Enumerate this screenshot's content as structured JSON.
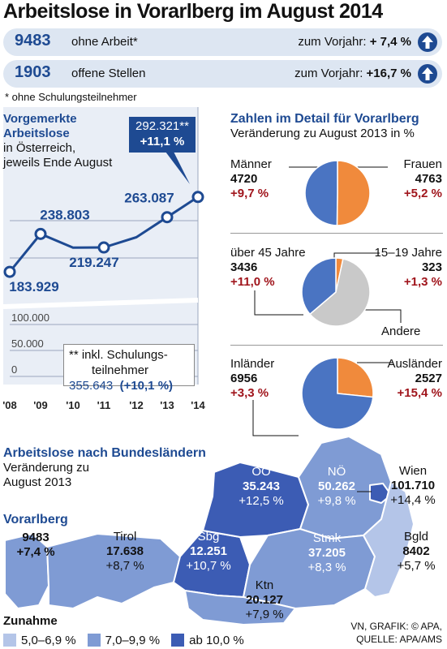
{
  "title": "Arbeitslose in Vorarlberg im August 2014",
  "kpis": [
    {
      "value": "9483",
      "label": "ohne Arbeit*",
      "change_label": "zum Vorjahr:",
      "change": "+ 7,4 %",
      "icon": "arrow-up-icon"
    },
    {
      "value": "1903",
      "label": "offene Stellen",
      "change_label": "zum Vorjahr:",
      "change": "+16,7 %",
      "icon": "arrow-up-icon"
    }
  ],
  "footnote": "* ohne Schulungsteilnehmer",
  "line_section": {
    "title_line1": "Vorgemerkte",
    "title_line2": "Arbeitslose",
    "sub_line1": "in Österreich,",
    "sub_line2": "jeweils Ende August",
    "callout_value": "292.321**",
    "callout_change": "+11,1 %",
    "note_line1": "** inkl. Schulungs-",
    "note_line2": "teilnehmer",
    "note_value": "355.643",
    "note_change": "(+10,1 %)"
  },
  "chart_data": [
    {
      "type": "line",
      "x": [
        "'08",
        "'09",
        "'10",
        "'11",
        "'12",
        "'13",
        "'14"
      ],
      "series": [
        {
          "values": [
            183929,
            238803,
            219000,
            219247,
            234000,
            263087,
            292321
          ]
        }
      ],
      "point_labels": [
        {
          "index": 0,
          "text": "183.929"
        },
        {
          "index": 1,
          "text": "238.803"
        },
        {
          "index": 3,
          "text": "219.247"
        },
        {
          "index": 5,
          "text": "263.087"
        }
      ],
      "y_ticks": [
        0,
        50000,
        100000
      ],
      "y_tick_labels": [
        "0",
        "50.000",
        "100.000"
      ],
      "ylim": [
        0,
        305000
      ],
      "y_axis_break": true,
      "grid": true,
      "color": "#1e4a92"
    },
    {
      "type": "pie",
      "title": "Zahlen im Detail für Vorarlberg",
      "subtitle": "Veränderung zu August 2013 in %",
      "charts": [
        {
          "slices": [
            {
              "name": "Männer",
              "value": 4720,
              "change": "+9,7 %",
              "color": "#4a74c2"
            },
            {
              "name": "Frauen",
              "value": 4763,
              "change": "+5,2 %",
              "color": "#f08a3c"
            }
          ]
        },
        {
          "slices": [
            {
              "name": "über 45 Jahre",
              "value": 3436,
              "change": "+11,0 %",
              "color": "#4a74c2"
            },
            {
              "name": "15–19 Jahre",
              "value": 323,
              "change": "+1,3 %",
              "color": "#f08a3c"
            },
            {
              "name": "Andere",
              "value": 5724,
              "change": "",
              "color": "#c9c9c9"
            }
          ]
        },
        {
          "slices": [
            {
              "name": "Inländer",
              "value": 6956,
              "change": "+3,3 %",
              "color": "#4a74c2"
            },
            {
              "name": "Ausländer",
              "value": 2527,
              "change": "+15,4 %",
              "color": "#f08a3c"
            }
          ]
        }
      ]
    }
  ],
  "map": {
    "title": "Arbeitslose nach Bundesländern",
    "sub_line1": "Veränderung zu",
    "sub_line2": "August 2013",
    "states": [
      {
        "name": "Vorarlberg",
        "value": "9483",
        "change": "+7,4 %",
        "color": "#7f9bd4"
      },
      {
        "name": "Tirol",
        "value": "17.638",
        "change": "+8,7 %",
        "color": "#7f9bd4"
      },
      {
        "name": "Sbg",
        "value": "12.251",
        "change": "+10,7 %",
        "color": "#3c5cb4"
      },
      {
        "name": "OÖ",
        "value": "35.243",
        "change": "+12,5 %",
        "color": "#3c5cb4"
      },
      {
        "name": "NÖ",
        "value": "50.262",
        "change": "+9,8 %",
        "color": "#7f9bd4"
      },
      {
        "name": "Wien",
        "value": "101.710",
        "change": "+14,4 %",
        "color": "#3c5cb4"
      },
      {
        "name": "Stmk",
        "value": "37.205",
        "change": "+8,3 %",
        "color": "#7f9bd4"
      },
      {
        "name": "Ktn",
        "value": "20.127",
        "change": "+7,9 %",
        "color": "#7f9bd4"
      },
      {
        "name": "Bgld",
        "value": "8402",
        "change": "+5,7 %",
        "color": "#b4c5e8"
      }
    ],
    "legend_title": "Zunahme",
    "legend": [
      {
        "label": "5,0–6,9 %",
        "color": "#b4c5e8"
      },
      {
        "label": "7,0–9,9 %",
        "color": "#7f9bd4"
      },
      {
        "label": "ab 10,0 %",
        "color": "#3c5cb4"
      }
    ]
  },
  "source_line1": "VN, GRAFIK: © APA,",
  "source_line2": "QUELLE: APA/AMS"
}
